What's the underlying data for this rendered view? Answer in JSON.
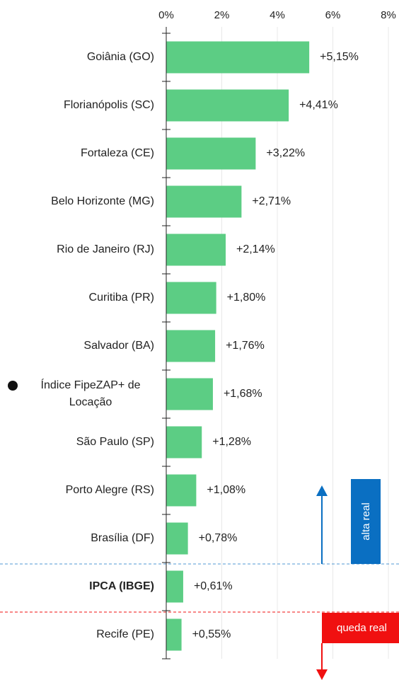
{
  "chart_data": {
    "type": "bar",
    "orientation": "horizontal",
    "categories": [
      "Goiânia (GO)",
      "Florianópolis (SC)",
      "Fortaleza (CE)",
      "Belo Horizonte (MG)",
      "Rio de Janeiro (RJ)",
      "Curitiba (PR)",
      "Salvador (BA)",
      "Índice FipeZAP+ de Locação",
      "São Paulo (SP)",
      "Porto Alegre (RS)",
      "Brasília (DF)",
      "IPCA (IBGE)",
      "Recife (PE)"
    ],
    "values": [
      5.15,
      4.41,
      3.22,
      2.71,
      2.14,
      1.8,
      1.76,
      1.68,
      1.28,
      1.08,
      0.78,
      0.61,
      0.55
    ],
    "value_labels": [
      "+5,15%",
      "+4,41%",
      "+3,22%",
      "+2,71%",
      "+2,14%",
      "+1,80%",
      "+1,76%",
      "+1,68%",
      "+1,28%",
      "+1,08%",
      "+0,78%",
      "+0,61%",
      "+0,55%"
    ],
    "color": "#5ccd84",
    "xlim": [
      0,
      8
    ],
    "xticks": [
      {
        "value": 0,
        "label": "0%"
      },
      {
        "value": 2,
        "label": "2%"
      },
      {
        "value": 4,
        "label": "4%"
      },
      {
        "value": 6,
        "label": "6%"
      },
      {
        "value": 8,
        "label": "8%"
      }
    ],
    "grid": true,
    "reference_category": 7,
    "benchmark_category": 11,
    "annotations": [
      {
        "text": "alta real",
        "color": "#0a6fc2"
      },
      {
        "text": "queda real",
        "color": "#f01010"
      }
    ]
  }
}
